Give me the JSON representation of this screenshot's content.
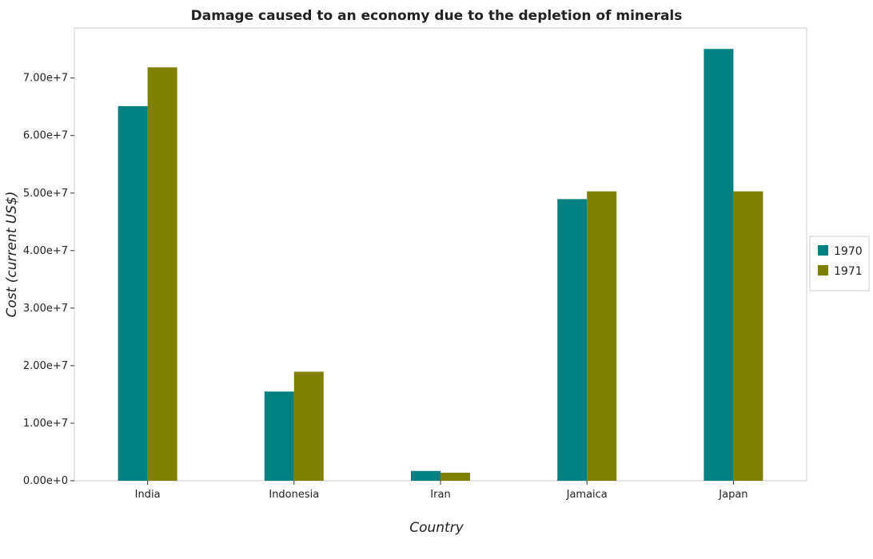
{
  "chart_data": {
    "type": "bar",
    "title": "Damage caused to an economy due to the depletion of minerals",
    "xlabel": "Country",
    "ylabel": "Cost (current US$)",
    "categories": [
      "India",
      "Indonesia",
      "Iran",
      "Jamaica",
      "Japan"
    ],
    "series": [
      {
        "name": "1970",
        "color": "#008080",
        "values": [
          65100000,
          15500000,
          1700000,
          48950000,
          75050000
        ]
      },
      {
        "name": "1971",
        "color": "#808000",
        "values": [
          71850000,
          18950000,
          1400000,
          50300000,
          50300000
        ]
      }
    ],
    "ylim": [
      0,
      78700000
    ],
    "yticks": [
      0,
      10000000,
      20000000,
      30000000,
      40000000,
      50000000,
      60000000,
      70000000
    ],
    "ytick_labels": [
      "0.00e+0",
      "1.00e+7",
      "2.00e+7",
      "3.00e+7",
      "4.00e+7",
      "5.00e+7",
      "6.00e+7",
      "7.00e+7"
    ],
    "grid": false,
    "legend_position": "right"
  }
}
